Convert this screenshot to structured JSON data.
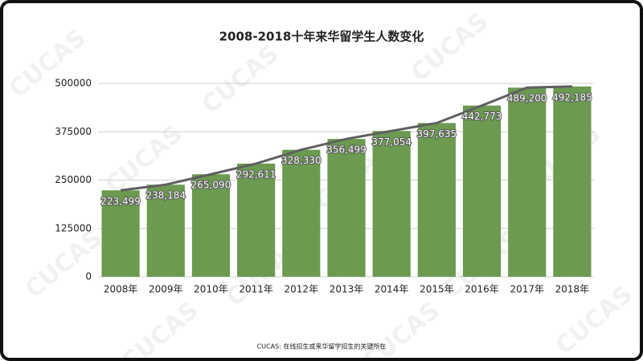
{
  "chart_data": {
    "type": "bar",
    "title": "2008-2018十年来华留学生人数变化",
    "categories": [
      "2008年",
      "2009年",
      "2010年",
      "2011年",
      "2012年",
      "2013年",
      "2014年",
      "2015年",
      "2016年",
      "2017年",
      "2018年"
    ],
    "values": [
      223499,
      238184,
      265090,
      292611,
      328330,
      356499,
      377054,
      397635,
      442773,
      489200,
      492185
    ],
    "value_labels": [
      "223,499",
      "238,184",
      "265,090",
      "292,611",
      "328,330",
      "356,499",
      "377,054",
      "397,635",
      "442,773",
      "489,200",
      "492,185"
    ],
    "color": "#6b9a50",
    "trend_line": true,
    "line_color": "#5f5f5f",
    "ylim": [
      0,
      500000
    ],
    "yticks": [
      0,
      125000,
      250000,
      375000,
      500000
    ],
    "grid": true,
    "footer": "CUCAS: 在线招生或来华留学招生的关键所在",
    "watermark": "CUCAS"
  }
}
